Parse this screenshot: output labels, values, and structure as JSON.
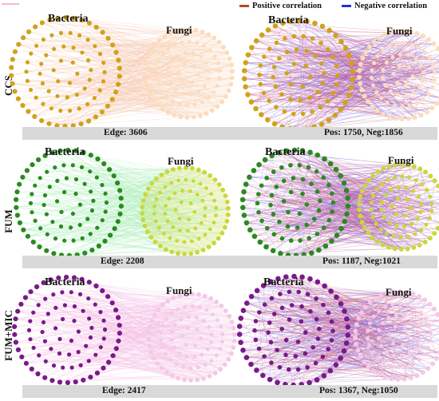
{
  "legend": {
    "positive_label": "Positive correlation",
    "negative_label": "Negative correlation",
    "positive_color": "#b8491f",
    "negative_color": "#2233d6"
  },
  "labels": {
    "bacteria": "Bacteria",
    "fungi": "Fungi"
  },
  "rows": [
    {
      "treatment": "CCS",
      "bacteria_color": "#d1a21a",
      "fungi_color": "#fbdcbd",
      "single_color_edge": "#f7cdb8",
      "edge_text": "Edge: 3606",
      "pos_neg_text": "Pos: 1750, Neg:1856"
    },
    {
      "treatment": "FUM",
      "bacteria_color": "#2b8a1f",
      "fungi_color": "#c9d83a",
      "single_color_edge": "#b6f0c2",
      "edge_text": "Edge: 2208",
      "pos_neg_text": "Pos: 1187, Neg:1021"
    },
    {
      "treatment": "FUM+MIC",
      "bacteria_color": "#7a1a8a",
      "fungi_color": "#f4c8e6",
      "single_color_edge": "#f6c4e8",
      "edge_text": "Edge: 2417",
      "pos_neg_text": "Pos: 1367, Neg:1050"
    }
  ]
}
